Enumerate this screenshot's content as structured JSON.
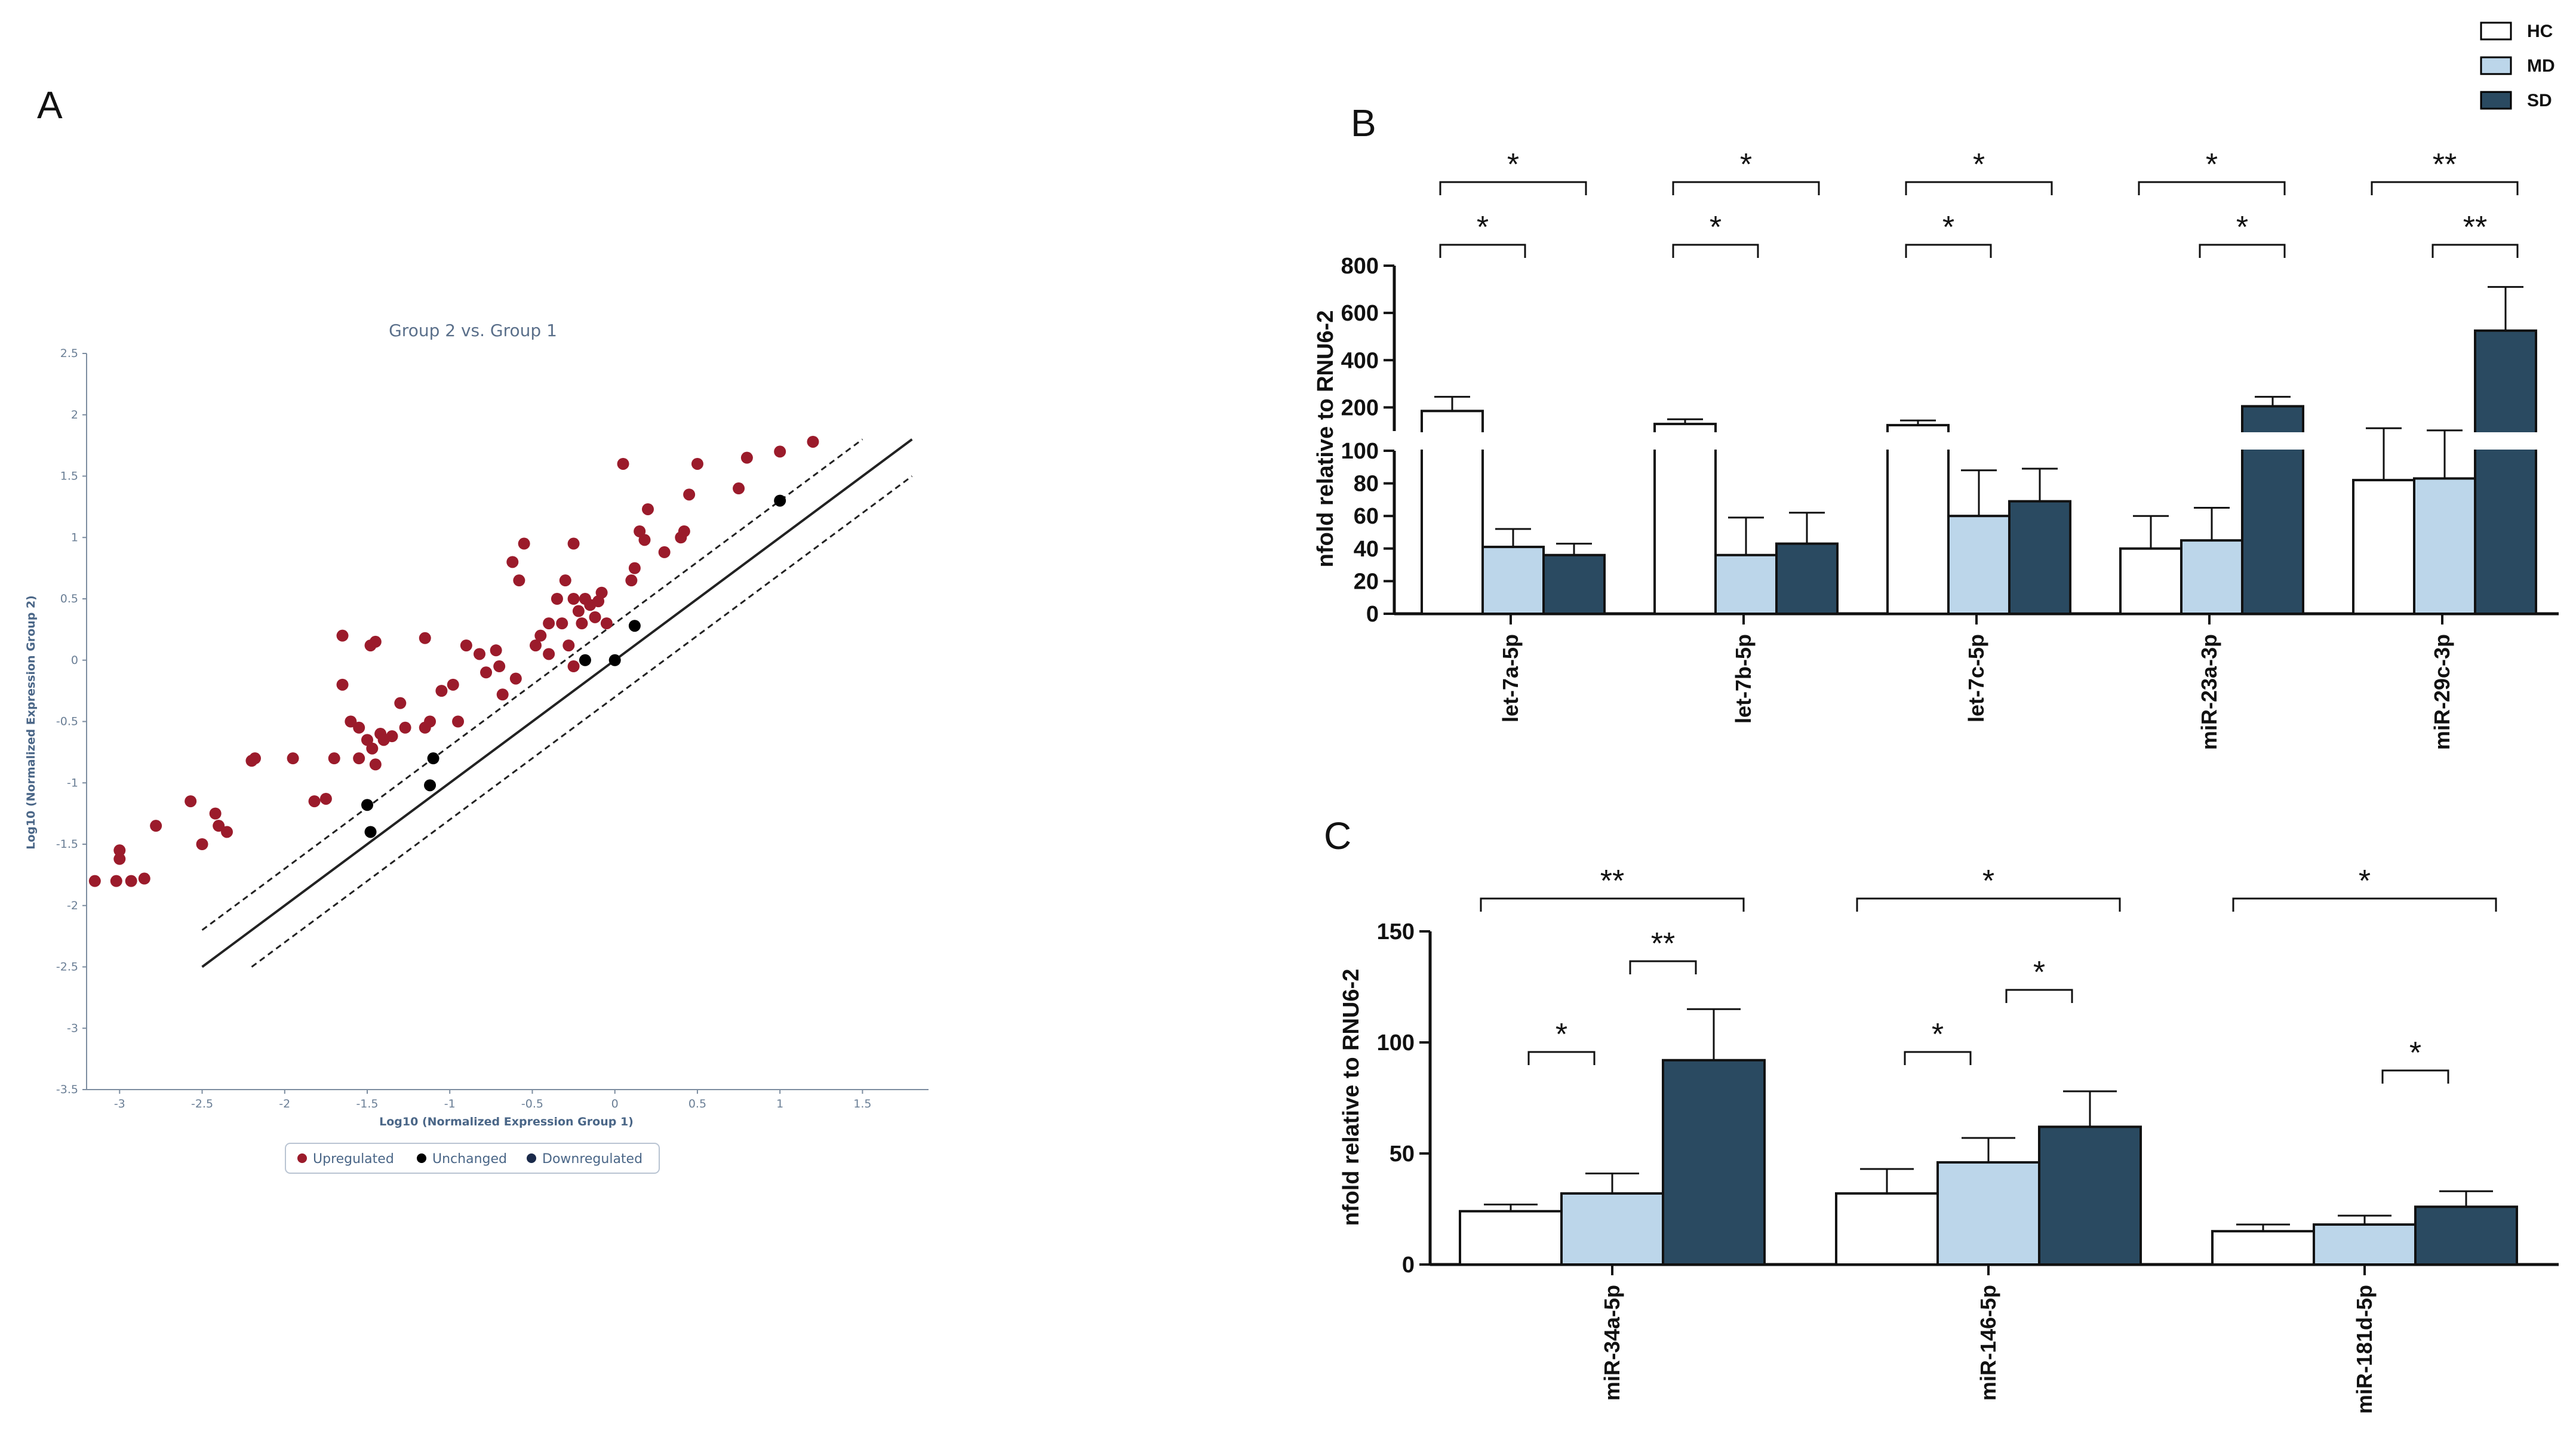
{
  "panels": {
    "a": "A",
    "b": "B",
    "c": "C"
  },
  "legend_groups": [
    {
      "name": "HC",
      "color": "#ffffff"
    },
    {
      "name": "MD",
      "color": "#bcd6ea"
    },
    {
      "name": "SD",
      "color": "#2a4a61"
    }
  ],
  "chart_data": [
    {
      "type": "scatter",
      "panel": "A",
      "title": "Group 2 vs. Group 1",
      "xlabel": "Log10 (Normalized Expression Group 1)",
      "ylabel": "Log10 (Normalized Expression Group 2)",
      "xlim": [
        -3.2,
        1.9
      ],
      "ylim": [
        -3.5,
        2.5
      ],
      "xticks": [
        "-3",
        "-2.5",
        "-2",
        "-1.5",
        "-1",
        "-0.5",
        "0",
        "0.5",
        "1",
        "1.5"
      ],
      "yticks": [
        "2.5",
        "2",
        "1.5",
        "1",
        "0.5",
        "0",
        "-0.5",
        "-1",
        "-1.5",
        "-2",
        "-2.5",
        "-3",
        "-3.5"
      ],
      "legend": [
        "Upregulated",
        "Unchanged",
        "Downregulated"
      ],
      "legend_colors": [
        "#9b1b2b",
        "#000000",
        "#1a2a4a"
      ],
      "lines": [
        {
          "name": "y = x",
          "style": "solid",
          "x": [
            -2.5,
            1.8
          ],
          "y": [
            -2.5,
            1.8
          ]
        },
        {
          "name": "upper fold boundary",
          "style": "dashed",
          "x": [
            -2.5,
            1.5
          ],
          "y": [
            -2.2,
            1.8
          ]
        },
        {
          "name": "lower fold boundary",
          "style": "dashed",
          "x": [
            -2.2,
            1.8
          ],
          "y": [
            -2.5,
            1.5
          ]
        }
      ],
      "upregulated": [
        [
          -3.15,
          -1.8
        ],
        [
          -3.02,
          -1.8
        ],
        [
          -2.93,
          -1.8
        ],
        [
          -2.85,
          -1.78
        ],
        [
          -3.0,
          -1.62
        ],
        [
          -3.0,
          -1.55
        ],
        [
          -2.78,
          -1.35
        ],
        [
          -2.57,
          -1.15
        ],
        [
          -2.5,
          -1.5
        ],
        [
          -2.42,
          -1.25
        ],
        [
          -2.4,
          -1.35
        ],
        [
          -2.35,
          -1.4
        ],
        [
          -2.2,
          -0.82
        ],
        [
          -2.18,
          -0.8
        ],
        [
          -1.95,
          -0.8
        ],
        [
          -1.82,
          -1.15
        ],
        [
          -1.75,
          -1.13
        ],
        [
          -1.7,
          -0.8
        ],
        [
          -1.65,
          -0.2
        ],
        [
          -1.65,
          0.2
        ],
        [
          -1.6,
          -0.5
        ],
        [
          -1.55,
          -0.55
        ],
        [
          -1.55,
          -0.8
        ],
        [
          -1.5,
          -0.65
        ],
        [
          -1.47,
          -0.72
        ],
        [
          -1.45,
          -0.85
        ],
        [
          -1.42,
          -0.6
        ],
        [
          -1.4,
          -0.65
        ],
        [
          -1.35,
          -0.62
        ],
        [
          -1.3,
          -0.35
        ],
        [
          -1.27,
          -0.55
        ],
        [
          -1.48,
          0.12
        ],
        [
          -1.45,
          0.15
        ],
        [
          -1.15,
          -0.55
        ],
        [
          -1.15,
          0.18
        ],
        [
          -1.12,
          -0.5
        ],
        [
          -1.05,
          -0.25
        ],
        [
          -0.98,
          -0.2
        ],
        [
          -0.95,
          -0.5
        ],
        [
          -0.9,
          0.12
        ],
        [
          -0.78,
          -0.1
        ],
        [
          -0.72,
          0.08
        ],
        [
          -0.7,
          -0.05
        ],
        [
          -0.68,
          -0.28
        ],
        [
          -0.6,
          -0.15
        ],
        [
          -0.62,
          0.8
        ],
        [
          -0.55,
          0.95
        ],
        [
          -0.48,
          0.12
        ],
        [
          -0.45,
          0.2
        ],
        [
          -0.4,
          0.3
        ],
        [
          -0.35,
          0.5
        ],
        [
          -0.32,
          0.3
        ],
        [
          -0.3,
          0.65
        ],
        [
          -0.28,
          0.12
        ],
        [
          -0.25,
          0.5
        ],
        [
          -0.22,
          0.4
        ],
        [
          -0.2,
          0.3
        ],
        [
          -0.18,
          0.5
        ],
        [
          -0.15,
          0.45
        ],
        [
          -0.12,
          0.35
        ],
        [
          -0.1,
          0.48
        ],
        [
          -0.08,
          0.55
        ],
        [
          -0.25,
          0.95
        ],
        [
          -0.05,
          0.3
        ],
        [
          0.05,
          1.6
        ],
        [
          0.1,
          0.65
        ],
        [
          0.12,
          0.75
        ],
        [
          0.15,
          1.05
        ],
        [
          0.18,
          0.98
        ],
        [
          0.2,
          1.23
        ],
        [
          0.3,
          0.88
        ],
        [
          0.4,
          1.0
        ],
        [
          0.42,
          1.05
        ],
        [
          0.45,
          1.35
        ],
        [
          0.5,
          1.6
        ],
        [
          0.75,
          1.4
        ],
        [
          0.8,
          1.65
        ],
        [
          1.0,
          1.7
        ],
        [
          1.2,
          1.78
        ],
        [
          -0.25,
          -0.05
        ],
        [
          -0.4,
          0.05
        ],
        [
          -0.82,
          0.05
        ],
        [
          -0.58,
          0.65
        ]
      ],
      "unchanged": [
        [
          -1.5,
          -1.18
        ],
        [
          -1.48,
          -1.4
        ],
        [
          -1.12,
          -1.02
        ],
        [
          -1.1,
          -0.8
        ],
        [
          -0.18,
          0.0
        ],
        [
          0.0,
          0.0
        ],
        [
          0.12,
          0.28
        ],
        [
          1.0,
          1.3
        ]
      ]
    },
    {
      "type": "bar",
      "panel": "B",
      "ylabel": "nfold relative to RNU6-2",
      "axis_break": true,
      "ylim_lower": [
        0,
        100
      ],
      "ylim_upper": [
        100,
        800
      ],
      "yticks_lower": [
        "0",
        "20",
        "40",
        "60",
        "80",
        "100"
      ],
      "yticks_upper": [
        "200",
        "400",
        "600",
        "800"
      ],
      "categories": [
        "let-7a-5p",
        "let-7b-5p",
        "let-7c-5p",
        "miR-23a-3p",
        "miR-29c-3p"
      ],
      "series": [
        {
          "name": "HC",
          "values": [
            185,
            130,
            125,
            40,
            82
          ],
          "errors": [
            60,
            20,
            20,
            20,
            30
          ]
        },
        {
          "name": "MD",
          "values": [
            41,
            36,
            60,
            45,
            83
          ],
          "errors": [
            11,
            23,
            28,
            20,
            20
          ]
        },
        {
          "name": "SD",
          "values": [
            36,
            43,
            69,
            205,
            525
          ],
          "errors": [
            7,
            19,
            20,
            40,
            185
          ]
        }
      ],
      "significance": [
        {
          "category": 0,
          "pair": [
            "HC",
            "SD"
          ],
          "label": "*"
        },
        {
          "category": 0,
          "pair": [
            "HC",
            "MD"
          ],
          "label": "*"
        },
        {
          "category": 1,
          "pair": [
            "HC",
            "SD"
          ],
          "label": "*"
        },
        {
          "category": 1,
          "pair": [
            "HC",
            "MD"
          ],
          "label": "*"
        },
        {
          "category": 2,
          "pair": [
            "HC",
            "SD"
          ],
          "label": "*"
        },
        {
          "category": 2,
          "pair": [
            "HC",
            "MD"
          ],
          "label": "*"
        },
        {
          "category": 3,
          "pair": [
            "HC",
            "SD"
          ],
          "label": "*"
        },
        {
          "category": 3,
          "pair": [
            "MD",
            "SD"
          ],
          "label": "*"
        },
        {
          "category": 4,
          "pair": [
            "HC",
            "SD"
          ],
          "label": "**"
        },
        {
          "category": 4,
          "pair": [
            "MD",
            "SD"
          ],
          "label": "**"
        }
      ]
    },
    {
      "type": "bar",
      "panel": "C",
      "ylabel": "nfold relative to RNU6-2",
      "ylim": [
        0,
        150
      ],
      "yticks": [
        "0",
        "50",
        "100",
        "150"
      ],
      "categories": [
        "miR-34a-5p",
        "miR-146-5p",
        "miR-181d-5p"
      ],
      "series": [
        {
          "name": "HC",
          "values": [
            24,
            32,
            15
          ],
          "errors": [
            3,
            11,
            3
          ]
        },
        {
          "name": "MD",
          "values": [
            32,
            46,
            18
          ],
          "errors": [
            9,
            11,
            4
          ]
        },
        {
          "name": "SD",
          "values": [
            92,
            62,
            26
          ],
          "errors": [
            23,
            16,
            7
          ]
        }
      ],
      "significance": [
        {
          "category": 0,
          "pair": [
            "HC",
            "SD"
          ],
          "label": "**"
        },
        {
          "category": 0,
          "pair": [
            "MD",
            "SD"
          ],
          "label": "**"
        },
        {
          "category": 0,
          "pair": [
            "HC",
            "MD"
          ],
          "label": "*"
        },
        {
          "category": 1,
          "pair": [
            "HC",
            "SD"
          ],
          "label": "*"
        },
        {
          "category": 1,
          "pair": [
            "MD",
            "SD"
          ],
          "label": "*"
        },
        {
          "category": 1,
          "pair": [
            "HC",
            "MD"
          ],
          "label": "*"
        },
        {
          "category": 2,
          "pair": [
            "HC",
            "SD"
          ],
          "label": "*"
        },
        {
          "category": 2,
          "pair": [
            "MD",
            "SD"
          ],
          "label": "*"
        }
      ]
    }
  ]
}
